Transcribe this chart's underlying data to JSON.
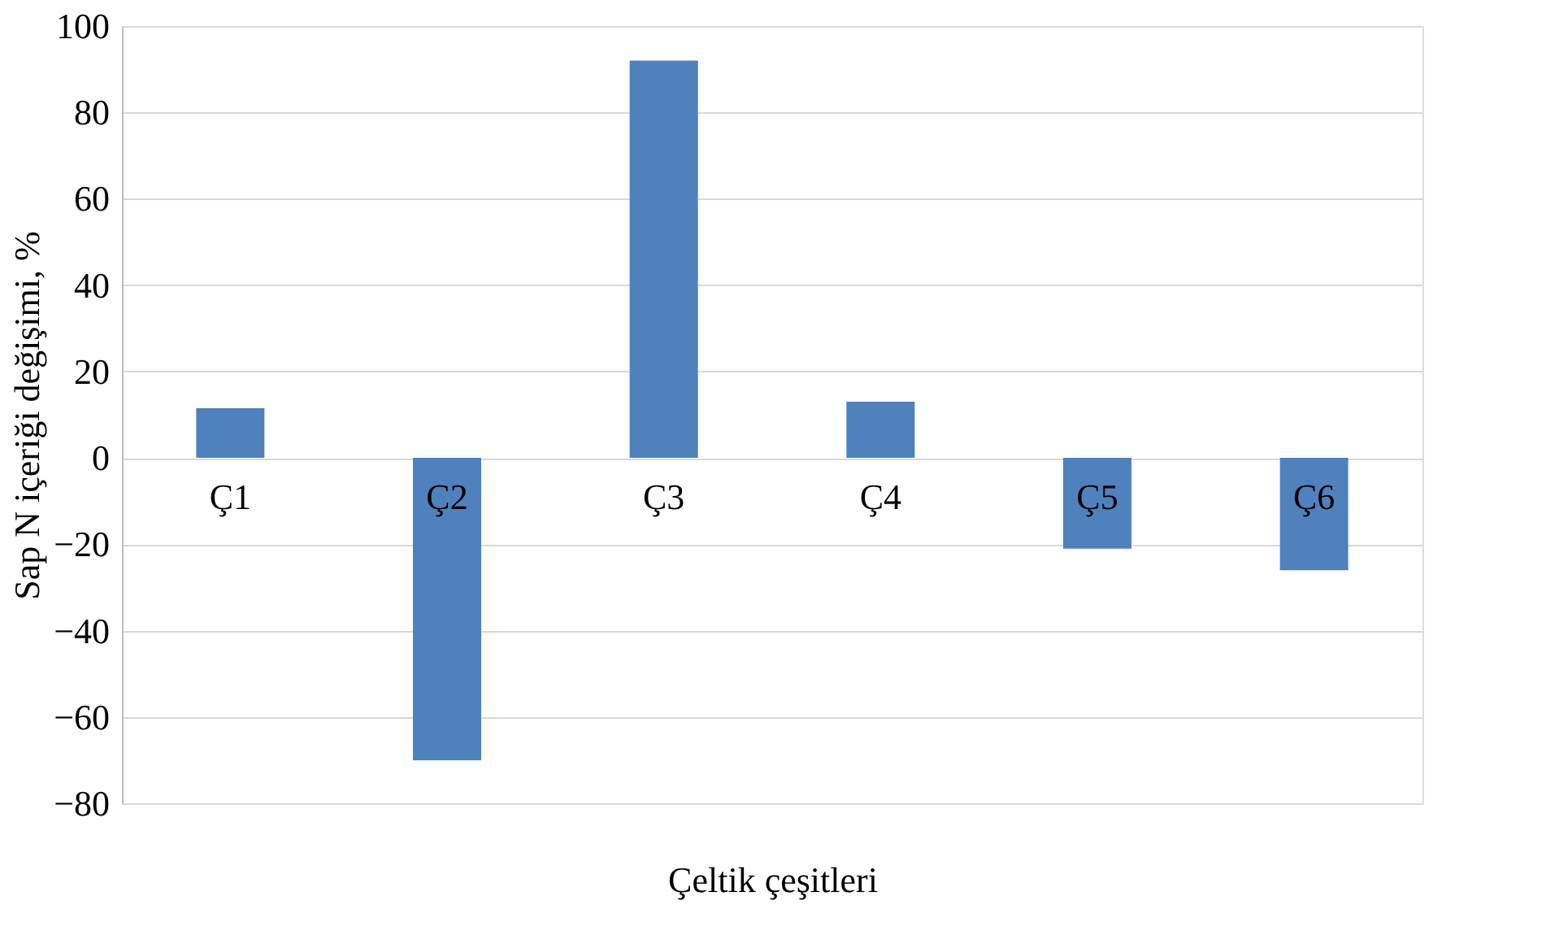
{
  "chart_data": {
    "type": "bar",
    "ylabel": "Sap N içeriği değişimi, %",
    "xlabel": "Çeltik çeşitleri",
    "categories": [
      "Ç1",
      "Ç2",
      "Ç3",
      "Ç4",
      "Ç5",
      "Ç6"
    ],
    "series": [
      {
        "color": "#4f81bd",
        "values": [
          11.5,
          -70,
          92,
          13,
          -21,
          -26
        ]
      }
    ],
    "ylim": [
      -80,
      100
    ],
    "yticks": [
      -80,
      -60,
      -40,
      -20,
      0,
      20,
      40,
      60,
      80,
      100
    ],
    "grid": "y",
    "legend": false
  }
}
